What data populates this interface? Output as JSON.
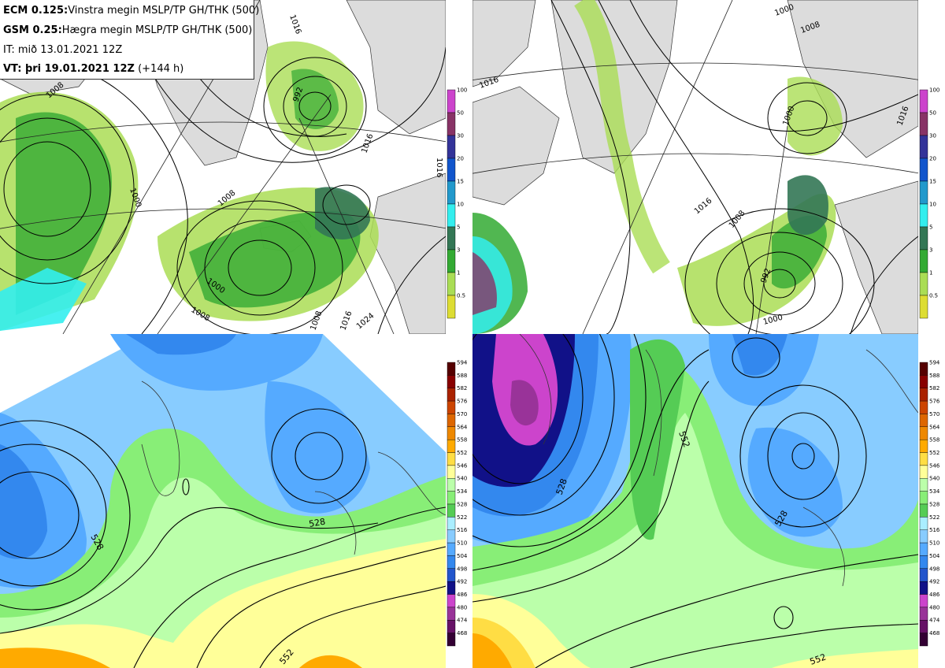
{
  "header": {
    "line1_model": "ECM 0.125:",
    "line1_text": "Vinstra megin MSLP/TP GH/THK (500)",
    "line2_model": "GSM 0.25:",
    "line2_text": "Hægra megin MSLP/TP GH/THK (500)",
    "line3_text": "IT: mið 13.01.2021 12Z",
    "line4_label": "VT: þri 19.01.2021 12Z",
    "line4_suffix": "(+144 h)"
  },
  "precip_legend": {
    "labels": [
      "100",
      "50",
      "30",
      "20",
      "15",
      "10",
      "5",
      "3",
      "1",
      "0.5"
    ],
    "colors": [
      "#cc44cc",
      "#883366",
      "#333399",
      "#1155cc",
      "#2299cc",
      "#33eeee",
      "#337755",
      "#33aa33",
      "#aadd55",
      "#dddd33"
    ]
  },
  "thk_legend": {
    "labels": [
      "594",
      "588",
      "582",
      "576",
      "570",
      "564",
      "558",
      "552",
      "546",
      "540",
      "534",
      "528",
      "522",
      "516",
      "510",
      "504",
      "498",
      "492",
      "486",
      "480",
      "474",
      "468"
    ],
    "colors": [
      "#550000",
      "#880000",
      "#aa2200",
      "#cc4400",
      "#dd6600",
      "#ee8800",
      "#ffaa00",
      "#ffdd44",
      "#ffff99",
      "#bbffaa",
      "#88ee77",
      "#55cc55",
      "#aaeeff",
      "#88ccff",
      "#55aaff",
      "#3388ee",
      "#2255cc",
      "#111188",
      "#cc44cc",
      "#993399",
      "#661166",
      "#330033"
    ]
  },
  "contour_labels": {
    "ecm_mslp": [
      "1016",
      "1008",
      "992",
      "1016",
      "1000",
      "1008",
      "1000",
      "1008",
      "1008",
      "1016",
      "1024",
      "1016"
    ],
    "gsm_mslp": [
      "1016",
      "1000",
      "1008",
      "1016",
      "1000",
      "1008",
      "992",
      "1000",
      "1016"
    ],
    "ecm_gh": [
      "528",
      "528",
      "552"
    ],
    "gsm_gh": [
      "552",
      "528",
      "528",
      "552"
    ]
  },
  "colors": {
    "land": "#dcdcdc",
    "sea": "#ffffff",
    "contour": "#000000"
  }
}
